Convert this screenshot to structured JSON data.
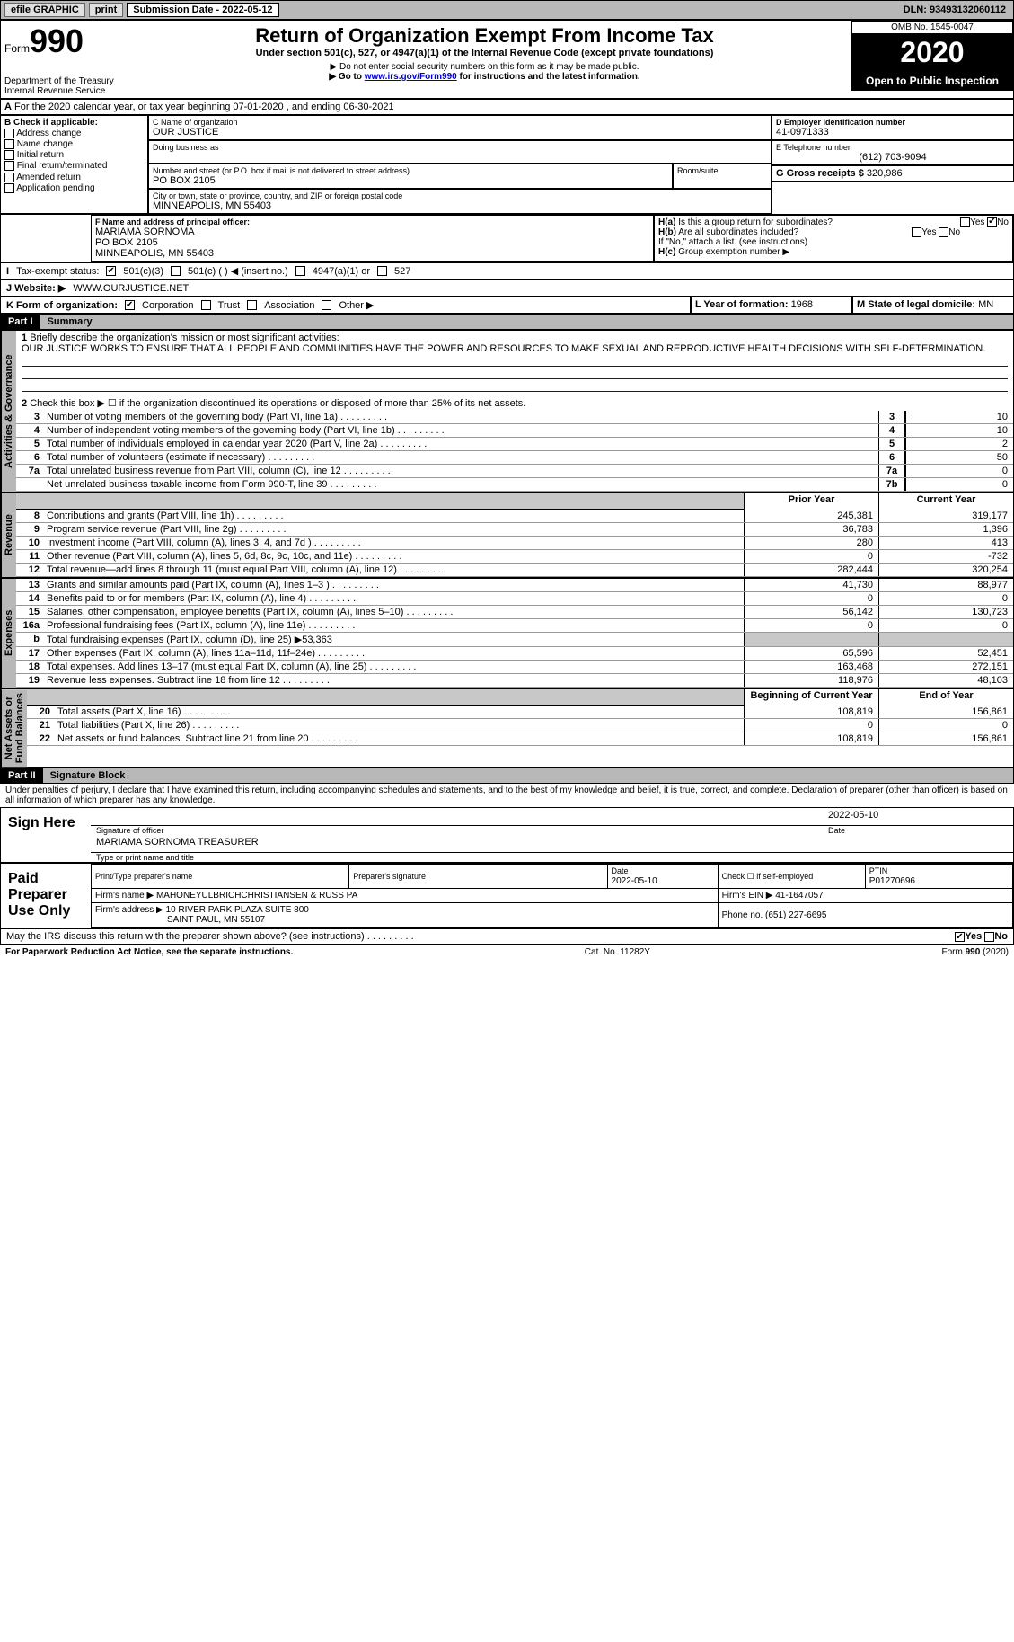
{
  "topbar": {
    "efile": "efile GRAPHIC",
    "print": "print",
    "sub_label": "Submission Date - ",
    "sub_date": "2022-05-12",
    "dln": "DLN: 93493132060112"
  },
  "header": {
    "form_word": "Form",
    "form_num": "990",
    "dept": "Department of the Treasury\nInternal Revenue Service",
    "title": "Return of Organization Exempt From Income Tax",
    "subtitle": "Under section 501(c), 527, or 4947(a)(1) of the Internal Revenue Code (except private foundations)",
    "note1": "▶ Do not enter social security numbers on this form as it may be made public.",
    "note2_pre": "▶ Go to ",
    "note2_link": "www.irs.gov/Form990",
    "note2_post": " for instructions and the latest information.",
    "omb": "OMB No. 1545-0047",
    "year": "2020",
    "open": "Open to Public Inspection"
  },
  "rowA": "For the 2020 calendar year, or tax year beginning 07-01-2020   , and ending 06-30-2021",
  "boxB": {
    "label": "B Check if applicable:",
    "items": [
      "Address change",
      "Name change",
      "Initial return",
      "Final return/terminated",
      "Amended return",
      "Application pending"
    ]
  },
  "boxC": {
    "name_lbl": "C Name of organization",
    "name": "OUR JUSTICE",
    "dba_lbl": "Doing business as",
    "addr_lbl": "Number and street (or P.O. box if mail is not delivered to street address)",
    "room_lbl": "Room/suite",
    "addr": "PO BOX 2105",
    "city_lbl": "City or town, state or province, country, and ZIP or foreign postal code",
    "city": "MINNEAPOLIS, MN  55403"
  },
  "boxD": {
    "lbl": "D Employer identification number",
    "val": "41-0971333"
  },
  "boxE": {
    "lbl": "E Telephone number",
    "val": "(612) 703-9094"
  },
  "boxG": {
    "lbl": "G Gross receipts $ ",
    "val": "320,986"
  },
  "boxF": {
    "lbl": "F Name and address of principal officer:",
    "name": "MARIAMA SORNOMA",
    "addr1": "PO BOX 2105",
    "addr2": "MINNEAPOLIS, MN  55403"
  },
  "boxH": {
    "a": "Is this a group return for subordinates?",
    "b": "Are all subordinates included?",
    "note": "If \"No,\" attach a list. (see instructions)",
    "c": "Group exemption number ▶",
    "yes": "Yes",
    "no": "No",
    "ha_no_checked": true
  },
  "rowI": {
    "lbl": "Tax-exempt status:",
    "o1": "501(c)(3)",
    "o2": "501(c) (  ) ◀ (insert no.)",
    "o3": "4947(a)(1) or",
    "o4": "527"
  },
  "rowJ": {
    "lbl": "J  Website: ▶",
    "val": "WWW.OURJUSTICE.NET"
  },
  "rowK": {
    "lbl": "K Form of organization:",
    "o1": "Corporation",
    "o2": "Trust",
    "o3": "Association",
    "o4": "Other ▶"
  },
  "rowL": {
    "lbl": "L Year of formation: ",
    "val": "1968"
  },
  "rowM": {
    "lbl": "M State of legal domicile: ",
    "val": "MN"
  },
  "part1": {
    "hdr": "Part I",
    "title": "Summary",
    "q1": "Briefly describe the organization's mission or most significant activities:",
    "mission": "OUR JUSTICE WORKS TO ENSURE THAT ALL PEOPLE AND COMMUNITIES HAVE THE POWER AND RESOURCES TO MAKE SEXUAL AND REPRODUCTIVE HEALTH DECISIONS WITH SELF-DETERMINATION.",
    "q2": "Check this box ▶ ☐  if the organization discontinued its operations or disposed of more than 25% of its net assets.",
    "gov_lines": [
      {
        "n": "3",
        "t": "Number of voting members of the governing body (Part VI, line 1a)",
        "b": "3",
        "v": "10"
      },
      {
        "n": "4",
        "t": "Number of independent voting members of the governing body (Part VI, line 1b)",
        "b": "4",
        "v": "10"
      },
      {
        "n": "5",
        "t": "Total number of individuals employed in calendar year 2020 (Part V, line 2a)",
        "b": "5",
        "v": "2"
      },
      {
        "n": "6",
        "t": "Total number of volunteers (estimate if necessary)",
        "b": "6",
        "v": "50"
      },
      {
        "n": "7a",
        "t": "Total unrelated business revenue from Part VIII, column (C), line 12",
        "b": "7a",
        "v": "0"
      },
      {
        "n": "",
        "t": "Net unrelated business taxable income from Form 990-T, line 39",
        "b": "7b",
        "v": "0"
      }
    ],
    "col_prior": "Prior Year",
    "col_curr": "Current Year",
    "rev_lines": [
      {
        "n": "8",
        "t": "Contributions and grants (Part VIII, line 1h)",
        "p": "245,381",
        "c": "319,177"
      },
      {
        "n": "9",
        "t": "Program service revenue (Part VIII, line 2g)",
        "p": "36,783",
        "c": "1,396"
      },
      {
        "n": "10",
        "t": "Investment income (Part VIII, column (A), lines 3, 4, and 7d )",
        "p": "280",
        "c": "413"
      },
      {
        "n": "11",
        "t": "Other revenue (Part VIII, column (A), lines 5, 6d, 8c, 9c, 10c, and 11e)",
        "p": "0",
        "c": "-732"
      },
      {
        "n": "12",
        "t": "Total revenue—add lines 8 through 11 (must equal Part VIII, column (A), line 12)",
        "p": "282,444",
        "c": "320,254"
      }
    ],
    "exp_lines": [
      {
        "n": "13",
        "t": "Grants and similar amounts paid (Part IX, column (A), lines 1–3 )",
        "p": "41,730",
        "c": "88,977"
      },
      {
        "n": "14",
        "t": "Benefits paid to or for members (Part IX, column (A), line 4)",
        "p": "0",
        "c": "0"
      },
      {
        "n": "15",
        "t": "Salaries, other compensation, employee benefits (Part IX, column (A), lines 5–10)",
        "p": "56,142",
        "c": "130,723"
      },
      {
        "n": "16a",
        "t": "Professional fundraising fees (Part IX, column (A), line 11e)",
        "p": "0",
        "c": "0"
      },
      {
        "n": "b",
        "t": "Total fundraising expenses (Part IX, column (D), line 25) ▶53,363",
        "p": "",
        "c": "",
        "shade": true
      },
      {
        "n": "17",
        "t": "Other expenses (Part IX, column (A), lines 11a–11d, 11f–24e)",
        "p": "65,596",
        "c": "52,451"
      },
      {
        "n": "18",
        "t": "Total expenses. Add lines 13–17 (must equal Part IX, column (A), line 25)",
        "p": "163,468",
        "c": "272,151"
      },
      {
        "n": "19",
        "t": "Revenue less expenses. Subtract line 18 from line 12",
        "p": "118,976",
        "c": "48,103"
      }
    ],
    "col_beg": "Beginning of Current Year",
    "col_end": "End of Year",
    "net_lines": [
      {
        "n": "20",
        "t": "Total assets (Part X, line 16)",
        "p": "108,819",
        "c": "156,861"
      },
      {
        "n": "21",
        "t": "Total liabilities (Part X, line 26)",
        "p": "0",
        "c": "0"
      },
      {
        "n": "22",
        "t": "Net assets or fund balances. Subtract line 21 from line 20",
        "p": "108,819",
        "c": "156,861"
      }
    ],
    "vlabels": {
      "gov": "Activities & Governance",
      "rev": "Revenue",
      "exp": "Expenses",
      "net": "Net Assets or\nFund Balances"
    }
  },
  "part2": {
    "hdr": "Part II",
    "title": "Signature Block",
    "decl": "Under penalties of perjury, I declare that I have examined this return, including accompanying schedules and statements, and to the best of my knowledge and belief, it is true, correct, and complete. Declaration of preparer (other than officer) is based on all information of which preparer has any knowledge.",
    "sign_here": "Sign Here",
    "sig_lbl": "Signature of officer",
    "date_lbl": "Date",
    "sig_date": "2022-05-10",
    "name_title": "MARIAMA SORNOMA  TREASURER",
    "name_lbl": "Type or print name and title",
    "paid": "Paid Preparer Use Only",
    "pt_name_lbl": "Print/Type preparer's name",
    "pt_sig_lbl": "Preparer's signature",
    "pt_date_lbl": "Date",
    "pt_date": "2022-05-10",
    "pt_self": "Check ☐ if self-employed",
    "ptin_lbl": "PTIN",
    "ptin": "P01270696",
    "firm_name_lbl": "Firm's name   ▶",
    "firm_name": "MAHONEYULBRICHCHRISTIANSEN & RUSS PA",
    "firm_ein_lbl": "Firm's EIN ▶",
    "firm_ein": "41-1647057",
    "firm_addr_lbl": "Firm's address ▶",
    "firm_addr": "10 RIVER PARK PLAZA SUITE 800",
    "firm_city": "SAINT PAUL, MN  55107",
    "phone_lbl": "Phone no. ",
    "phone": "(651) 227-6695",
    "discuss": "May the IRS discuss this return with the preparer shown above?  (see instructions)",
    "yes": "Yes",
    "no": "No"
  },
  "footer": {
    "pra": "For Paperwork Reduction Act Notice, see the separate instructions.",
    "cat": "Cat. No. 11282Y",
    "form": "Form 990 (2020)"
  }
}
